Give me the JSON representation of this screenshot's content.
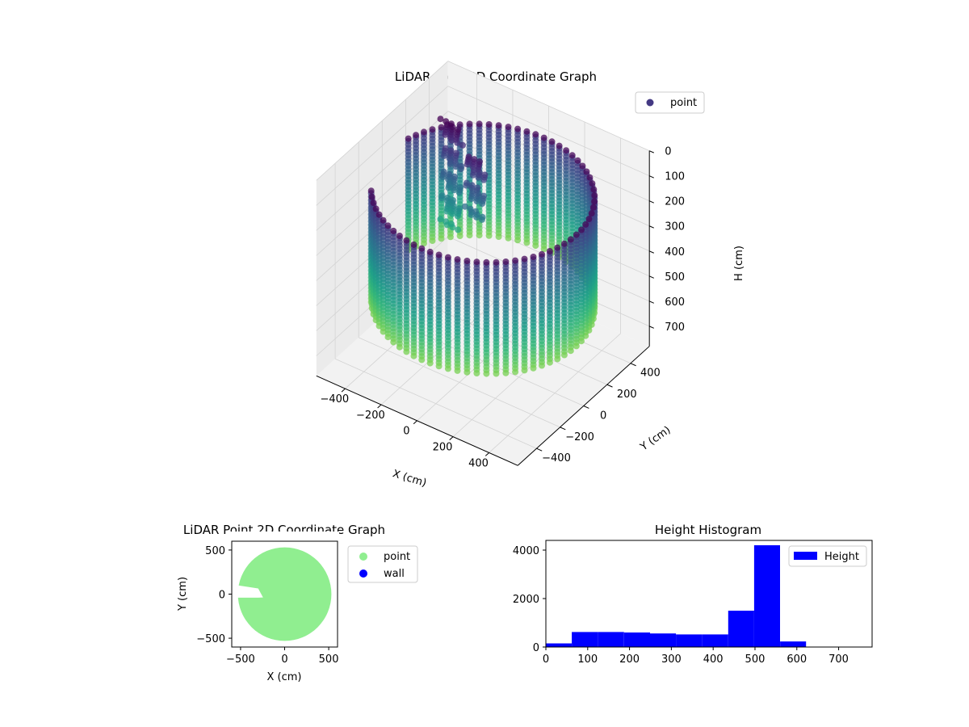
{
  "chart_data": [
    {
      "type": "scatter",
      "projection": "3d",
      "title": "LiDAR Point 3D Coordinate Graph",
      "xlabel": "X (cm)",
      "ylabel": "Y (cm)",
      "zlabel": "H (cm)",
      "xlim": [
        -560,
        560
      ],
      "ylim": [
        -560,
        560
      ],
      "zlim": [
        780,
        0
      ],
      "z_inverted": true,
      "xticks": [
        "−400",
        "−200",
        "0",
        "200",
        "400"
      ],
      "yticks": [
        "−400",
        "−200",
        "0",
        "200",
        "400"
      ],
      "zticks": [
        "0",
        "100",
        "200",
        "300",
        "400",
        "500",
        "600",
        "700"
      ],
      "colormap": "viridis",
      "grid": true,
      "legend": {
        "position": "top-right",
        "entries": [
          {
            "label": "point",
            "color": "#443983"
          }
        ]
      },
      "series": [
        {
          "name": "point",
          "shape": "cylindrical wall",
          "radius": 520,
          "height_range": [
            120,
            560
          ],
          "opening_angle_deg": [
            165,
            215
          ],
          "inner_objects": [
            {
              "x": -300,
              "y": 200,
              "h_range": [
                0,
                420
              ]
            },
            {
              "x": -120,
              "y": 120,
              "h_range": [
                50,
                300
              ]
            }
          ]
        }
      ]
    },
    {
      "type": "scatter",
      "title": "LiDAR Point 2D Coordinate Graph",
      "xlabel": "X (cm)",
      "ylabel": "Y (cm)",
      "xlim": [
        -600,
        600
      ],
      "ylim": [
        -600,
        600
      ],
      "xticks": [
        "−500",
        "0",
        "500"
      ],
      "yticks": [
        "−500",
        "0",
        "500"
      ],
      "legend": {
        "position": "right",
        "entries": [
          {
            "label": "point",
            "color": "#90ee90"
          },
          {
            "label": "wall",
            "color": "#0000ff"
          }
        ]
      },
      "series": [
        {
          "name": "point",
          "color": "#90ee90",
          "radius": 530,
          "gap": {
            "from_x": -560,
            "to_x": -300,
            "y_range": [
              -40,
              110
            ]
          }
        },
        {
          "name": "wall",
          "color": "#0000ff",
          "points": []
        }
      ]
    },
    {
      "type": "bar",
      "histogram": true,
      "title": "Height Histogram",
      "xlim": [
        0,
        780
      ],
      "ylim": [
        0,
        4400
      ],
      "xticks": [
        "0",
        "100",
        "200",
        "300",
        "400",
        "500",
        "600",
        "700"
      ],
      "yticks": [
        "0",
        "2000",
        "4000"
      ],
      "legend": {
        "position": "top-right",
        "entries": [
          {
            "label": "Height",
            "color": "#0000ff"
          }
        ]
      },
      "bins": [
        [
          0,
          62,
          150
        ],
        [
          62,
          124,
          620
        ],
        [
          124,
          187,
          620
        ],
        [
          187,
          249,
          600
        ],
        [
          249,
          311,
          560
        ],
        [
          311,
          373,
          520
        ],
        [
          373,
          436,
          520
        ],
        [
          436,
          498,
          1500
        ],
        [
          498,
          560,
          4200
        ],
        [
          560,
          622,
          230
        ],
        [
          622,
          684,
          0
        ],
        [
          684,
          746,
          0
        ]
      ]
    }
  ]
}
